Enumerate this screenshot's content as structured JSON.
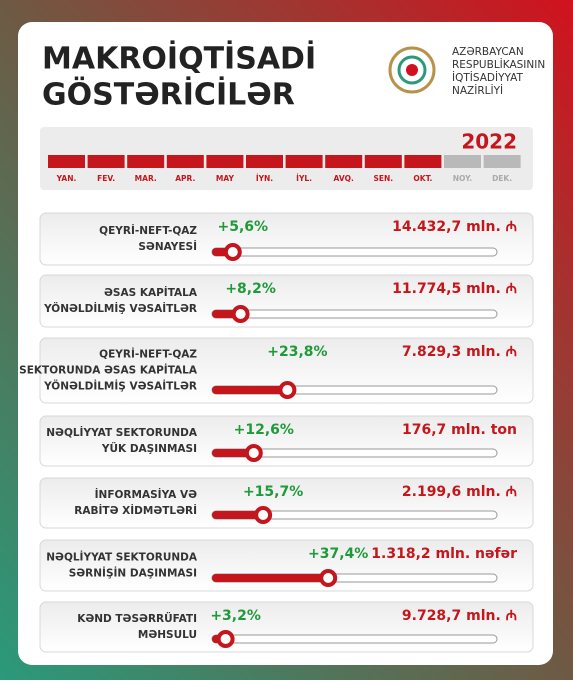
{
  "header": {
    "title_lines": [
      "MAKROİQTİSADİ",
      "GÖSTƏRİCİLƏR"
    ],
    "ministry_lines": [
      "AZƏRBAYCAN",
      "RESPUBLİKASININ",
      "İQTİSADİYYAT",
      "NAZİRLİYİ"
    ]
  },
  "timeline": {
    "year": "2022",
    "months": [
      {
        "label": "YAN.",
        "active": true
      },
      {
        "label": "FEV.",
        "active": true
      },
      {
        "label": "MAR.",
        "active": true
      },
      {
        "label": "APR.",
        "active": true
      },
      {
        "label": "MAY",
        "active": true
      },
      {
        "label": "İYN.",
        "active": true
      },
      {
        "label": "İYL.",
        "active": true
      },
      {
        "label": "AVQ.",
        "active": true
      },
      {
        "label": "SEN.",
        "active": true
      },
      {
        "label": "OKT.",
        "active": true
      },
      {
        "label": "NOY.",
        "active": false
      },
      {
        "label": "DEK.",
        "active": false
      }
    ]
  },
  "indicators": [
    {
      "label_lines": [
        "QEYRİ-NEFT-QAZ",
        "SƏNAYESİ"
      ],
      "growth": {
        "value": 5.6,
        "label": "+5,6%"
      },
      "amount": "14.432,7 mln. ₼"
    },
    {
      "label_lines": [
        "ƏSAS KAPİTALA",
        "YÖNƏLDİLMİŞ VƏSAİTLƏR"
      ],
      "growth": {
        "value": 8.2,
        "label": "+8,2%"
      },
      "amount": "11.774,5 mln. ₼"
    },
    {
      "label_lines": [
        "QEYRİ-NEFT-QAZ",
        "SEKTORUNDA ƏSAS KAPİTALA",
        "YÖNƏLDİLMİŞ VƏSAİTLƏR"
      ],
      "growth": {
        "value": 23.8,
        "label": "+23,8%"
      },
      "amount": "7.829,3 mln. ₼"
    },
    {
      "label_lines": [
        "NƏQLİYYAT SEKTORUNDA",
        "YÜK DAŞINMASI"
      ],
      "growth": {
        "value": 12.6,
        "label": "+12,6%"
      },
      "amount": "176,7 mln. ton"
    },
    {
      "label_lines": [
        "İNFORMASİYA VƏ",
        "RABİTƏ XİDMƏTLƏRİ"
      ],
      "growth": {
        "value": 15.7,
        "label": "+15,7%"
      },
      "amount": "2.199,6 mln. ₼"
    },
    {
      "label_lines": [
        "NƏQLİYYAT SEKTORUNDA",
        "SƏRNİŞİN DAŞINMASI"
      ],
      "growth": {
        "value": 37.4,
        "label": "+37,4%"
      },
      "amount": "1.318,2 mln. nəfər"
    },
    {
      "label_lines": [
        "KƏND TƏSƏRRÜFATI",
        "MƏHSULU"
      ],
      "growth": {
        "value": 3.2,
        "label": "+3,2%"
      },
      "amount": "9.728,7 mln. ₼"
    }
  ]
}
